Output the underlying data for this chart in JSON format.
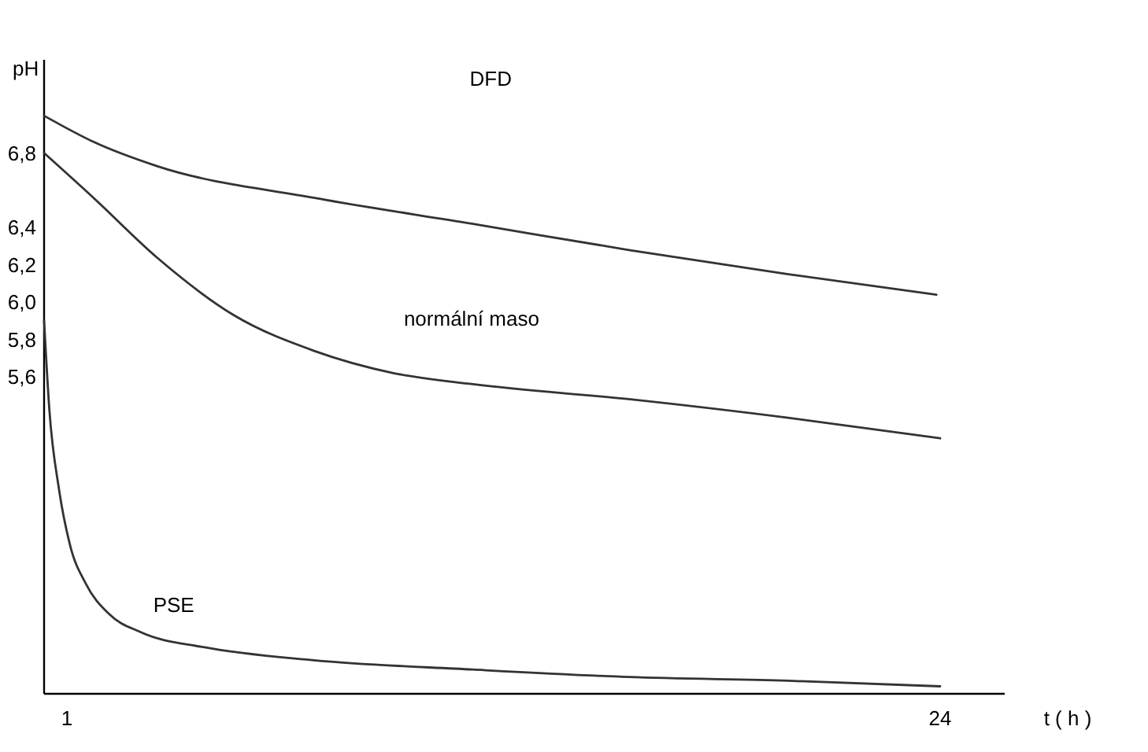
{
  "chart_data": {
    "type": "line",
    "xlabel": "t ( h )",
    "ylabel": "pH",
    "xlim": [
      0.4,
      25.7
    ],
    "ylim": [
      3.9,
      7.3
    ],
    "xticks": [
      1,
      24
    ],
    "yticks": [
      {
        "value": 6.8,
        "label": "6,8"
      },
      {
        "value": 6.4,
        "label": "6,4"
      },
      {
        "value": 6.2,
        "label": "6,2"
      },
      {
        "value": 6.0,
        "label": "6,0"
      },
      {
        "value": 5.8,
        "label": "5,8"
      },
      {
        "value": 5.6,
        "label": "5,6"
      }
    ],
    "grid": false,
    "marker": "none",
    "line_style": "solid",
    "series": [
      {
        "color": "#333333",
        "x": [
          0.4,
          1.7,
          3.37,
          7.5,
          11.7,
          15.8,
          20,
          23.9
        ],
        "values": [
          7.0,
          6.86,
          6.73,
          6.56,
          6.42,
          6.28,
          6.15,
          6.04
        ]
      },
      {
        "color": "#333333",
        "x": [
          0.4,
          1.7,
          3.37,
          5.4,
          7.5,
          9.6,
          11.7,
          15.8,
          20,
          24
        ],
        "values": [
          6.8,
          6.56,
          6.24,
          5.93,
          5.74,
          5.62,
          5.56,
          5.48,
          5.38,
          5.27
        ]
      },
      {
        "color": "#333333",
        "x": [
          0.4,
          0.54,
          0.79,
          1.08,
          1.5,
          2.1,
          2.95,
          4.6,
          7.5,
          11.7,
          15.8,
          20,
          24
        ],
        "values": [
          5.9,
          5.42,
          5.0,
          4.7,
          4.49,
          4.33,
          4.23,
          4.15,
          4.08,
          4.03,
          3.99,
          3.97,
          3.94
        ]
      }
    ],
    "annotations": [
      "DFD",
      "normální maso",
      "PSE"
    ]
  }
}
